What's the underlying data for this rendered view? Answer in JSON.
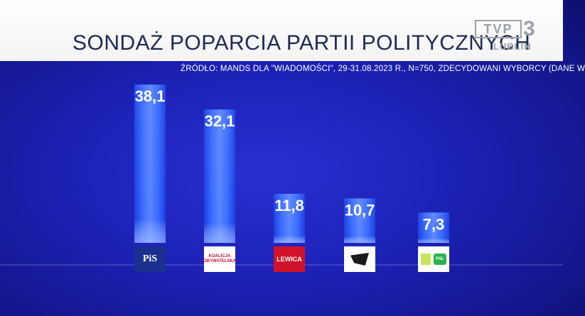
{
  "header": {
    "title": "SONDAŻ POPARCIA PARTII POLITYCZNYCH",
    "source": "ŹRÓDŁO: MANDS DLA \"WIADOMOŚCI\", 29-31.08.2023 R., N=750, ZDECYDOWANI WYBORCY (DANE W"
  },
  "broadcaster": {
    "logo_text": "TVP",
    "logo_number": "3",
    "city": "LUBLIN"
  },
  "chart_data": {
    "type": "bar",
    "categories": [
      "PiS",
      "Koalicja Obywatelska",
      "Lewica",
      "Konfederacja",
      "Trzecia Droga"
    ],
    "values": [
      38.1,
      32.1,
      11.8,
      10.7,
      7.3
    ],
    "value_labels": [
      "38,1",
      "32,1",
      "11,8",
      "10,7",
      "7,3"
    ],
    "ylim": [
      0,
      40
    ],
    "grid": false,
    "legend": "none",
    "colors": {
      "bar": "#2f5cff",
      "bar_highlight": "#8fb0ff",
      "bar_shadow": "#1433c8"
    }
  },
  "party_logos": [
    {
      "icon": "pis-logo",
      "text": "PiS"
    },
    {
      "icon": "ko-logo",
      "text": "KOALICJA OBYWATELSKA"
    },
    {
      "icon": "lewica-logo",
      "text": "LEWICA"
    },
    {
      "icon": "konfederacja-logo",
      "text": ""
    },
    {
      "icon": "trzecia-droga-logo",
      "text": "PSL"
    }
  ]
}
